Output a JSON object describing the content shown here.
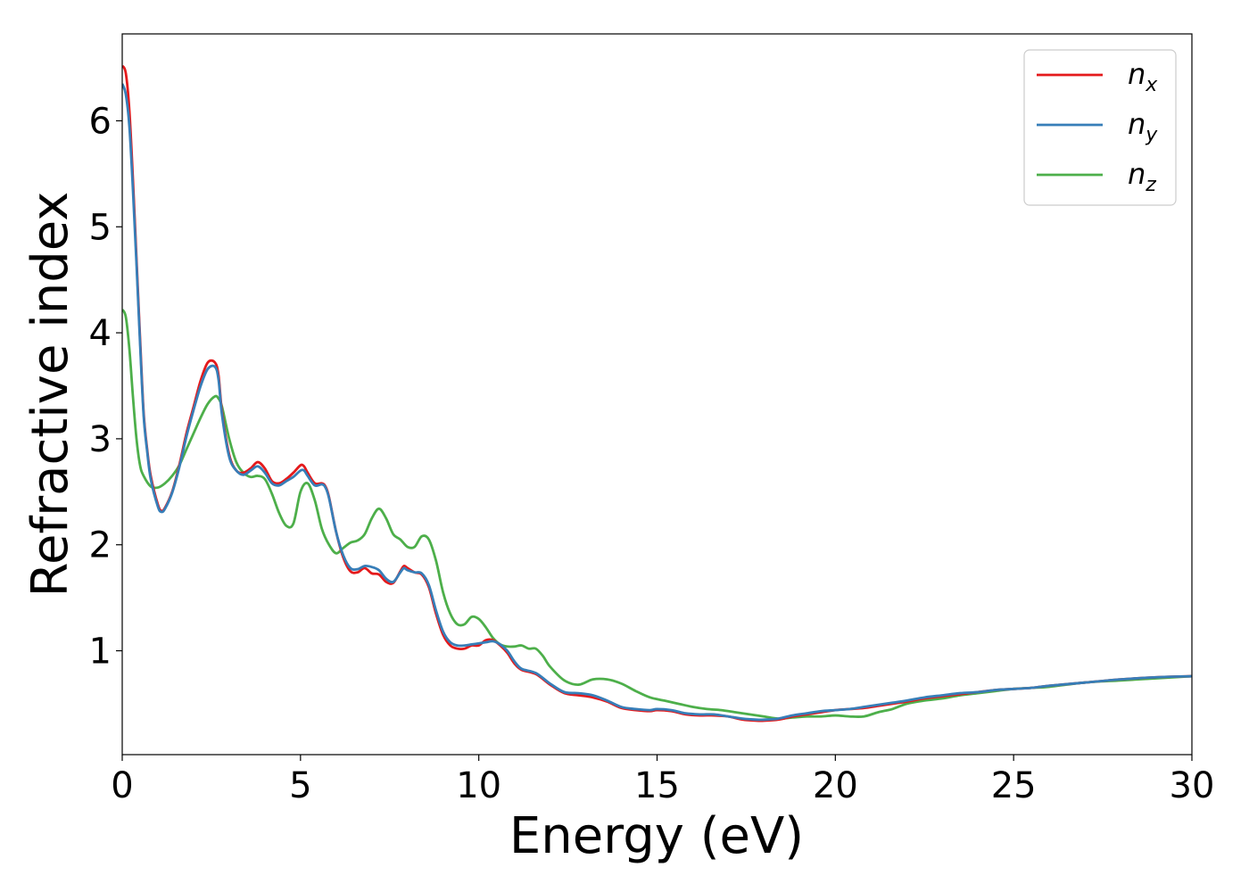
{
  "chart_data": {
    "type": "line",
    "xlabel": "Energy (eV)",
    "ylabel": "Refractive index",
    "xlim": [
      0,
      30
    ],
    "ylim": [
      0.02,
      6.82
    ],
    "xticks": [
      0,
      5,
      10,
      15,
      20,
      25,
      30
    ],
    "xtick_labels": [
      "0",
      "5",
      "10",
      "15",
      "20",
      "25",
      "30"
    ],
    "yticks": [
      1,
      2,
      3,
      4,
      5,
      6
    ],
    "ytick_labels": [
      "1",
      "2",
      "3",
      "4",
      "5",
      "6"
    ],
    "grid": false,
    "legend_position": "top-right",
    "series": [
      {
        "name": "n_x",
        "legend_base": "n",
        "legend_sub": "x",
        "color": "#e41a1c",
        "x": [
          0.0,
          0.1,
          0.2,
          0.3,
          0.4,
          0.5,
          0.6,
          0.7,
          0.8,
          1.0,
          1.1,
          1.2,
          1.4,
          1.6,
          1.8,
          2.0,
          2.2,
          2.4,
          2.6,
          2.7,
          2.8,
          3.0,
          3.2,
          3.4,
          3.6,
          3.8,
          4.0,
          4.2,
          4.4,
          4.6,
          4.8,
          5.0,
          5.1,
          5.2,
          5.4,
          5.6,
          5.7,
          5.8,
          6.0,
          6.2,
          6.4,
          6.6,
          6.8,
          7.0,
          7.2,
          7.4,
          7.6,
          7.8,
          7.9,
          8.0,
          8.2,
          8.4,
          8.6,
          8.8,
          9.0,
          9.2,
          9.4,
          9.6,
          9.8,
          10.0,
          10.2,
          10.4,
          10.6,
          10.8,
          11.0,
          11.2,
          11.6,
          12.0,
          12.4,
          12.8,
          13.2,
          13.6,
          14.0,
          14.4,
          14.8,
          15.0,
          15.4,
          15.8,
          16.2,
          16.6,
          17.0,
          17.4,
          17.8,
          18.0,
          18.4,
          18.8,
          19.2,
          19.6,
          20.0,
          20.4,
          20.8,
          21.2,
          21.6,
          22.0,
          22.5,
          23.0,
          23.5,
          24.0,
          24.5,
          25.0,
          25.5,
          26.0,
          27.0,
          28.0,
          29.0,
          30.0
        ],
        "y": [
          6.52,
          6.45,
          6.1,
          5.45,
          4.7,
          3.95,
          3.25,
          2.9,
          2.65,
          2.38,
          2.32,
          2.35,
          2.5,
          2.75,
          3.05,
          3.3,
          3.55,
          3.72,
          3.72,
          3.6,
          3.25,
          2.85,
          2.7,
          2.68,
          2.72,
          2.78,
          2.72,
          2.6,
          2.58,
          2.62,
          2.68,
          2.75,
          2.74,
          2.68,
          2.58,
          2.58,
          2.55,
          2.45,
          2.12,
          1.88,
          1.75,
          1.74,
          1.78,
          1.73,
          1.72,
          1.65,
          1.64,
          1.75,
          1.8,
          1.78,
          1.74,
          1.72,
          1.6,
          1.35,
          1.15,
          1.05,
          1.02,
          1.02,
          1.05,
          1.05,
          1.1,
          1.1,
          1.05,
          0.98,
          0.88,
          0.82,
          0.78,
          0.68,
          0.6,
          0.58,
          0.56,
          0.52,
          0.46,
          0.44,
          0.43,
          0.44,
          0.43,
          0.4,
          0.39,
          0.39,
          0.38,
          0.35,
          0.34,
          0.34,
          0.35,
          0.38,
          0.4,
          0.42,
          0.44,
          0.45,
          0.46,
          0.48,
          0.5,
          0.52,
          0.55,
          0.57,
          0.59,
          0.61,
          0.63,
          0.64,
          0.65,
          0.67,
          0.7,
          0.73,
          0.75,
          0.76
        ]
      },
      {
        "name": "n_y",
        "legend_base": "n",
        "legend_sub": "y",
        "color": "#377eb8",
        "x": [
          0.0,
          0.1,
          0.2,
          0.3,
          0.4,
          0.5,
          0.6,
          0.7,
          0.8,
          1.0,
          1.1,
          1.2,
          1.4,
          1.6,
          1.8,
          2.0,
          2.2,
          2.4,
          2.6,
          2.7,
          2.8,
          3.0,
          3.2,
          3.4,
          3.6,
          3.8,
          4.0,
          4.2,
          4.4,
          4.6,
          4.8,
          5.0,
          5.1,
          5.2,
          5.4,
          5.6,
          5.7,
          5.8,
          6.0,
          6.2,
          6.4,
          6.6,
          6.8,
          7.0,
          7.2,
          7.4,
          7.6,
          7.8,
          7.9,
          8.0,
          8.2,
          8.4,
          8.6,
          8.8,
          9.0,
          9.2,
          9.4,
          9.6,
          9.8,
          10.0,
          10.2,
          10.4,
          10.6,
          10.8,
          11.0,
          11.2,
          11.6,
          12.0,
          12.4,
          12.8,
          13.2,
          13.6,
          14.0,
          14.4,
          14.8,
          15.0,
          15.4,
          15.8,
          16.2,
          16.6,
          17.0,
          17.4,
          17.8,
          18.0,
          18.4,
          18.8,
          19.2,
          19.6,
          20.0,
          20.4,
          20.8,
          21.2,
          21.6,
          22.0,
          22.5,
          23.0,
          23.5,
          24.0,
          24.5,
          25.0,
          25.5,
          26.0,
          27.0,
          28.0,
          29.0,
          30.0
        ],
        "y": [
          6.35,
          6.25,
          5.95,
          5.35,
          4.65,
          3.9,
          3.22,
          2.88,
          2.62,
          2.36,
          2.31,
          2.34,
          2.49,
          2.73,
          3.02,
          3.27,
          3.5,
          3.66,
          3.68,
          3.56,
          3.22,
          2.83,
          2.7,
          2.66,
          2.7,
          2.74,
          2.68,
          2.58,
          2.56,
          2.6,
          2.64,
          2.7,
          2.7,
          2.65,
          2.56,
          2.57,
          2.54,
          2.44,
          2.12,
          1.9,
          1.78,
          1.77,
          1.8,
          1.79,
          1.76,
          1.68,
          1.65,
          1.74,
          1.78,
          1.76,
          1.74,
          1.73,
          1.62,
          1.38,
          1.18,
          1.08,
          1.05,
          1.05,
          1.06,
          1.07,
          1.08,
          1.09,
          1.06,
          1.0,
          0.9,
          0.83,
          0.79,
          0.69,
          0.61,
          0.6,
          0.58,
          0.53,
          0.47,
          0.45,
          0.44,
          0.45,
          0.44,
          0.41,
          0.4,
          0.4,
          0.38,
          0.36,
          0.35,
          0.35,
          0.36,
          0.39,
          0.41,
          0.43,
          0.44,
          0.45,
          0.47,
          0.49,
          0.51,
          0.53,
          0.56,
          0.58,
          0.6,
          0.61,
          0.63,
          0.64,
          0.65,
          0.67,
          0.7,
          0.73,
          0.75,
          0.76
        ]
      },
      {
        "name": "n_z",
        "legend_base": "n",
        "legend_sub": "z",
        "color": "#4daf4a",
        "x": [
          0.0,
          0.1,
          0.2,
          0.3,
          0.4,
          0.5,
          0.6,
          0.8,
          1.0,
          1.2,
          1.4,
          1.6,
          1.8,
          2.0,
          2.2,
          2.4,
          2.6,
          2.7,
          2.8,
          3.0,
          3.2,
          3.4,
          3.6,
          3.8,
          4.0,
          4.2,
          4.4,
          4.6,
          4.8,
          5.0,
          5.2,
          5.4,
          5.6,
          5.8,
          6.0,
          6.2,
          6.4,
          6.6,
          6.8,
          7.0,
          7.2,
          7.4,
          7.6,
          7.8,
          8.0,
          8.2,
          8.4,
          8.6,
          8.8,
          9.0,
          9.2,
          9.4,
          9.6,
          9.8,
          10.0,
          10.2,
          10.4,
          10.6,
          10.8,
          11.0,
          11.2,
          11.4,
          11.6,
          11.8,
          12.0,
          12.4,
          12.8,
          13.2,
          13.6,
          14.0,
          14.4,
          14.8,
          15.2,
          15.6,
          16.0,
          16.4,
          16.8,
          17.2,
          17.6,
          18.0,
          18.4,
          18.8,
          19.2,
          19.6,
          20.0,
          20.4,
          20.8,
          21.2,
          21.6,
          22.0,
          22.5,
          23.0,
          23.5,
          24.0,
          24.5,
          25.0,
          25.5,
          26.0,
          27.0,
          28.0,
          29.0,
          30.0
        ],
        "y": [
          4.22,
          4.15,
          3.85,
          3.4,
          3.0,
          2.75,
          2.65,
          2.55,
          2.54,
          2.58,
          2.65,
          2.75,
          2.9,
          3.05,
          3.2,
          3.33,
          3.4,
          3.38,
          3.3,
          3.0,
          2.78,
          2.68,
          2.64,
          2.65,
          2.62,
          2.48,
          2.3,
          2.18,
          2.2,
          2.5,
          2.58,
          2.42,
          2.15,
          2.0,
          1.92,
          1.97,
          2.02,
          2.04,
          2.1,
          2.25,
          2.34,
          2.25,
          2.1,
          2.05,
          1.98,
          1.98,
          2.08,
          2.05,
          1.85,
          1.55,
          1.35,
          1.25,
          1.25,
          1.32,
          1.3,
          1.22,
          1.12,
          1.06,
          1.04,
          1.04,
          1.05,
          1.02,
          1.02,
          0.95,
          0.85,
          0.72,
          0.68,
          0.73,
          0.73,
          0.69,
          0.62,
          0.56,
          0.53,
          0.5,
          0.47,
          0.45,
          0.44,
          0.42,
          0.4,
          0.38,
          0.36,
          0.37,
          0.38,
          0.38,
          0.39,
          0.38,
          0.38,
          0.42,
          0.45,
          0.5,
          0.53,
          0.55,
          0.58,
          0.6,
          0.62,
          0.64,
          0.65,
          0.66,
          0.7,
          0.72,
          0.74,
          0.76
        ]
      }
    ]
  }
}
